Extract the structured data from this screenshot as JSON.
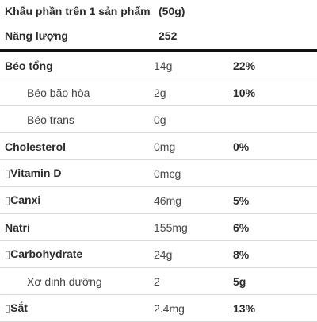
{
  "header": {
    "label": "Khẩu phần trên 1 sản phẩm",
    "value": "(50g)"
  },
  "energy": {
    "label": "Năng lượng",
    "value": "252"
  },
  "rows": [
    {
      "label": "Béo tổng",
      "amount": "14g",
      "dv": "22%"
    },
    {
      "label": "Béo bão hòa",
      "amount": "2g",
      "dv": "10%"
    },
    {
      "label": "Béo trans",
      "amount": "0g",
      "dv": ""
    },
    {
      "label": "Cholesterol",
      "amount": "0mg",
      "dv": "0%"
    },
    {
      "label": "Vitamin D",
      "amount": "0mcg",
      "dv": "",
      "glyph": "▯"
    },
    {
      "label": "Canxi",
      "amount": "46mg",
      "dv": "5%",
      "glyph": "▯"
    },
    {
      "label": "Natri",
      "amount": "155mg",
      "dv": "6%"
    },
    {
      "label": "Carbohydrate",
      "amount": "24g",
      "dv": "8%",
      "glyph": "▯"
    },
    {
      "label": "Xơ dinh dưỡng",
      "amount": "2",
      "dv": "5g"
    },
    {
      "label": "Sắt",
      "amount": "2.4mg",
      "dv": "13%",
      "glyph": "▯"
    }
  ]
}
